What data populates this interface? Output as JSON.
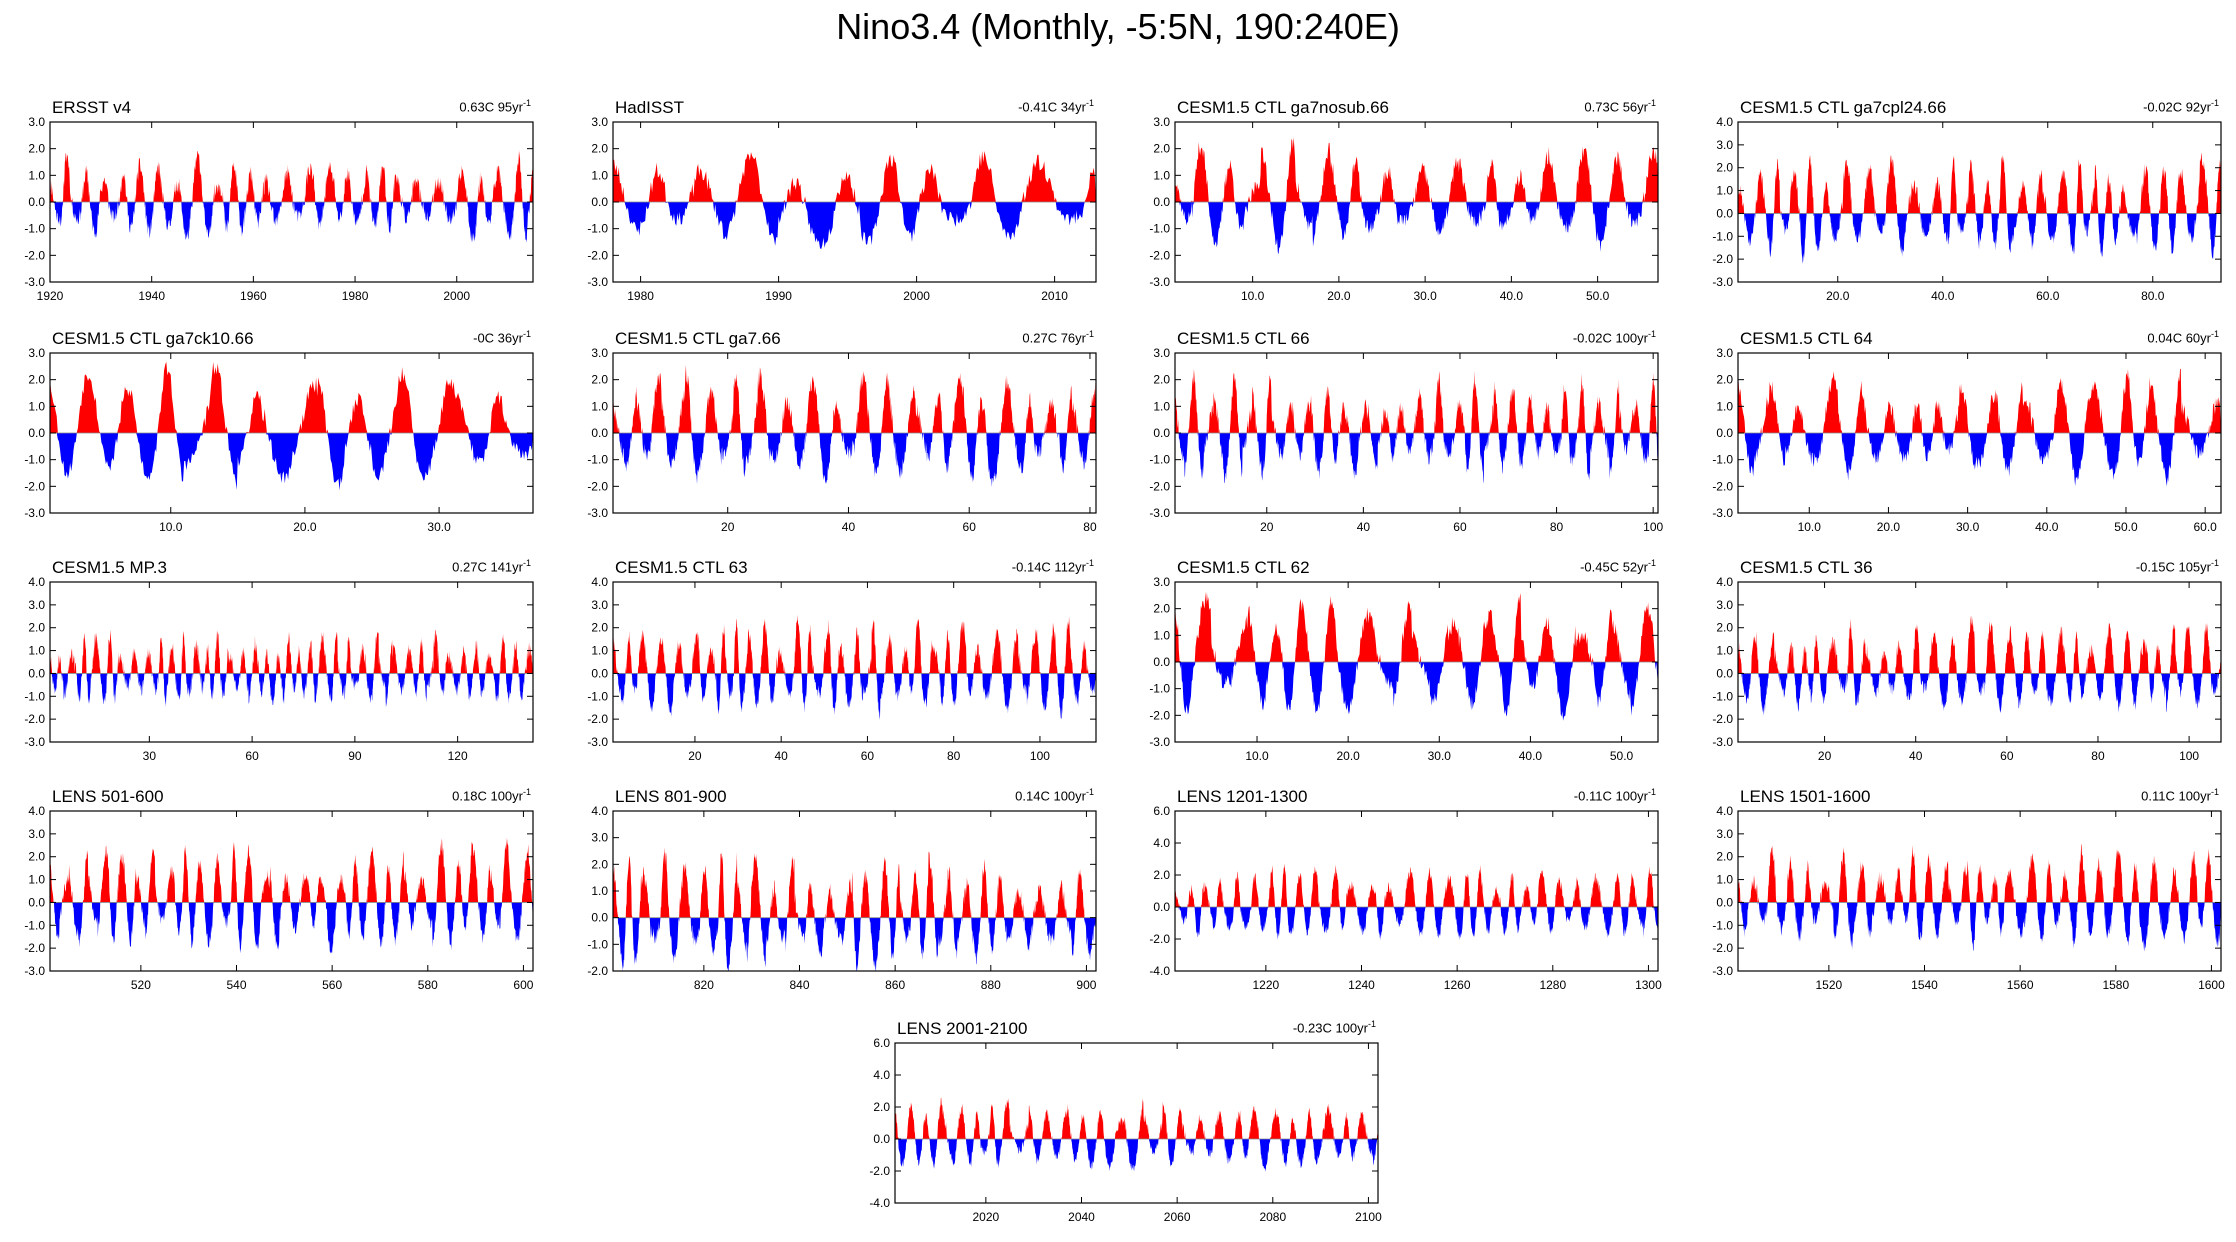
{
  "title": "Nino3.4 (Monthly, -5:5N, 190:240E)",
  "colors": {
    "positive": "#ff0000",
    "negative": "#0000ff",
    "axis": "#000000"
  },
  "chart_data": [
    {
      "type": "area",
      "title": "ERSST v4",
      "trend": "0.63C 95yr",
      "trend_exp": "-1",
      "xlim": [
        1920,
        2015
      ],
      "ylim": [
        -3,
        3
      ],
      "yticks": [
        -3,
        -2,
        -1,
        0,
        1,
        2,
        3
      ],
      "ytick_labels": [
        "-3.0",
        "-2.0",
        "-1.0",
        "0.0",
        "1.0",
        "2.0",
        "3.0"
      ],
      "xticks": [
        1920,
        1940,
        1960,
        1980,
        2000
      ],
      "xtick_labels": [
        "1920",
        "1940",
        "1960",
        "1980",
        "2000"
      ],
      "seed": 11,
      "amp": 0.8
    },
    {
      "type": "area",
      "title": "HadISST",
      "trend": "-0.41C 34yr",
      "trend_exp": "-1",
      "xlim": [
        1978,
        2013
      ],
      "ylim": [
        -3,
        3
      ],
      "yticks": [
        -3,
        -2,
        -1,
        0,
        1,
        2,
        3
      ],
      "ytick_labels": [
        "-3.0",
        "-2.0",
        "-1.0",
        "0.0",
        "1.0",
        "2.0",
        "3.0"
      ],
      "xticks": [
        1980,
        1990,
        2000,
        2010
      ],
      "xtick_labels": [
        "1980",
        "1990",
        "2000",
        "2010"
      ],
      "seed": 23,
      "amp": 0.9
    },
    {
      "type": "area",
      "title": "CESM1.5 CTL ga7nosub.66",
      "trend": "0.73C 56yr",
      "trend_exp": "-1",
      "xlim": [
        1,
        57
      ],
      "ylim": [
        -3,
        3
      ],
      "yticks": [
        -3,
        -2,
        -1,
        0,
        1,
        2,
        3
      ],
      "ytick_labels": [
        "-3.0",
        "-2.0",
        "-1.0",
        "0.0",
        "1.0",
        "2.0",
        "3.0"
      ],
      "xticks": [
        10,
        20,
        30,
        40,
        50
      ],
      "xtick_labels": [
        "10.0",
        "20.0",
        "30.0",
        "40.0",
        "50.0"
      ],
      "seed": 37,
      "amp": 0.95
    },
    {
      "type": "area",
      "title": "CESM1.5 CTL ga7cpl24.66",
      "trend": "-0.02C 92yr",
      "trend_exp": "-1",
      "xlim": [
        1,
        93
      ],
      "ylim": [
        -3,
        4
      ],
      "yticks": [
        -3,
        -2,
        -1,
        0,
        1,
        2,
        3,
        4
      ],
      "ytick_labels": [
        "-3.0",
        "-2.0",
        "-1.0",
        "0.0",
        "1.0",
        "2.0",
        "3.0",
        "4.0"
      ],
      "xticks": [
        20,
        40,
        60,
        80
      ],
      "xtick_labels": [
        "20.0",
        "40.0",
        "60.0",
        "80.0"
      ],
      "seed": 41,
      "amp": 1.1
    },
    {
      "type": "area",
      "title": "CESM1.5 CTL ga7ck10.66",
      "trend": "-0C 36yr",
      "trend_exp": "-1",
      "xlim": [
        1,
        37
      ],
      "ylim": [
        -3,
        3
      ],
      "yticks": [
        -3,
        -2,
        -1,
        0,
        1,
        2,
        3
      ],
      "ytick_labels": [
        "-3.0",
        "-2.0",
        "-1.0",
        "0.0",
        "1.0",
        "2.0",
        "3.0"
      ],
      "xticks": [
        10,
        20,
        30
      ],
      "xtick_labels": [
        "10.0",
        "20.0",
        "30.0"
      ],
      "seed": 53,
      "amp": 1.1
    },
    {
      "type": "area",
      "title": "CESM1.5 CTL ga7.66",
      "trend": "0.27C 76yr",
      "trend_exp": "-1",
      "xlim": [
        1,
        81
      ],
      "ylim": [
        -3,
        3
      ],
      "yticks": [
        -3,
        -2,
        -1,
        0,
        1,
        2,
        3
      ],
      "ytick_labels": [
        "-3.0",
        "-2.0",
        "-1.0",
        "0.0",
        "1.0",
        "2.0",
        "3.0"
      ],
      "xticks": [
        20,
        40,
        60,
        80
      ],
      "xtick_labels": [
        "20",
        "40",
        "60",
        "80"
      ],
      "seed": 67,
      "amp": 1.05
    },
    {
      "type": "area",
      "title": "CESM1.5 CTL 66",
      "trend": "-0.02C 100yr",
      "trend_exp": "-1",
      "xlim": [
        1,
        101
      ],
      "ylim": [
        -3,
        3
      ],
      "yticks": [
        -3,
        -2,
        -1,
        0,
        1,
        2,
        3
      ],
      "ytick_labels": [
        "-3.0",
        "-2.0",
        "-1.0",
        "0.0",
        "1.0",
        "2.0",
        "3.0"
      ],
      "xticks": [
        20,
        40,
        60,
        80,
        100
      ],
      "xtick_labels": [
        "20",
        "40",
        "60",
        "80",
        "100"
      ],
      "seed": 71,
      "amp": 0.95
    },
    {
      "type": "area",
      "title": "CESM1.5 CTL 64",
      "trend": "0.04C 60yr",
      "trend_exp": "-1",
      "xlim": [
        1,
        62
      ],
      "ylim": [
        -3,
        3
      ],
      "yticks": [
        -3,
        -2,
        -1,
        0,
        1,
        2,
        3
      ],
      "ytick_labels": [
        "-3.0",
        "-2.0",
        "-1.0",
        "0.0",
        "1.0",
        "2.0",
        "3.0"
      ],
      "xticks": [
        10,
        20,
        30,
        40,
        50,
        60
      ],
      "xtick_labels": [
        "10.0",
        "20.0",
        "30.0",
        "40.0",
        "50.0",
        "60.0"
      ],
      "seed": 83,
      "amp": 1.0
    },
    {
      "type": "area",
      "title": "CESM1.5 MP.3",
      "trend": "0.27C 141yr",
      "trend_exp": "-1",
      "xlim": [
        1,
        142
      ],
      "ylim": [
        -3,
        4
      ],
      "yticks": [
        -3,
        -2,
        -1,
        0,
        1,
        2,
        3,
        4
      ],
      "ytick_labels": [
        "-3.0",
        "-2.0",
        "-1.0",
        "0.0",
        "1.0",
        "2.0",
        "3.0",
        "4.0"
      ],
      "xticks": [
        30,
        60,
        90,
        120
      ],
      "xtick_labels": [
        "30",
        "60",
        "90",
        "120"
      ],
      "seed": 97,
      "amp": 0.75
    },
    {
      "type": "area",
      "title": "CESM1.5 CTL 63",
      "trend": "-0.14C 112yr",
      "trend_exp": "-1",
      "xlim": [
        1,
        113
      ],
      "ylim": [
        -3,
        4
      ],
      "yticks": [
        -3,
        -2,
        -1,
        0,
        1,
        2,
        3,
        4
      ],
      "ytick_labels": [
        "-3.0",
        "-2.0",
        "-1.0",
        "0.0",
        "1.0",
        "2.0",
        "3.0",
        "4.0"
      ],
      "xticks": [
        20,
        40,
        60,
        80,
        100
      ],
      "xtick_labels": [
        "20",
        "40",
        "60",
        "80",
        "100"
      ],
      "seed": 101,
      "amp": 1.05
    },
    {
      "type": "area",
      "title": "CESM1.5 CTL 62",
      "trend": "-0.45C 52yr",
      "trend_exp": "-1",
      "xlim": [
        1,
        54
      ],
      "ylim": [
        -3,
        3
      ],
      "yticks": [
        -3,
        -2,
        -1,
        0,
        1,
        2,
        3
      ],
      "ytick_labels": [
        "-3.0",
        "-2.0",
        "-1.0",
        "0.0",
        "1.0",
        "2.0",
        "3.0"
      ],
      "xticks": [
        10,
        20,
        30,
        40,
        50
      ],
      "xtick_labels": [
        "10.0",
        "20.0",
        "30.0",
        "40.0",
        "50.0"
      ],
      "seed": 113,
      "amp": 1.1
    },
    {
      "type": "area",
      "title": "CESM1.5 CTL 36",
      "trend": "-0.15C 105yr",
      "trend_exp": "-1",
      "xlim": [
        1,
        107
      ],
      "ylim": [
        -3,
        4
      ],
      "yticks": [
        -3,
        -2,
        -1,
        0,
        1,
        2,
        3,
        4
      ],
      "ytick_labels": [
        "-3.0",
        "-2.0",
        "-1.0",
        "0.0",
        "1.0",
        "2.0",
        "3.0",
        "4.0"
      ],
      "xticks": [
        20,
        40,
        60,
        80,
        100
      ],
      "xtick_labels": [
        "20",
        "40",
        "60",
        "80",
        "100"
      ],
      "seed": 127,
      "amp": 1.0
    },
    {
      "type": "area",
      "title": "LENS 501-600",
      "trend": "0.18C 100yr",
      "trend_exp": "-1",
      "xlim": [
        501,
        602
      ],
      "ylim": [
        -3,
        4
      ],
      "yticks": [
        -3,
        -2,
        -1,
        0,
        1,
        2,
        3,
        4
      ],
      "ytick_labels": [
        "-3.0",
        "-2.0",
        "-1.0",
        "0.0",
        "1.0",
        "2.0",
        "3.0",
        "4.0"
      ],
      "xticks": [
        520,
        540,
        560,
        580,
        600
      ],
      "xtick_labels": [
        "520",
        "540",
        "560",
        "580",
        "600"
      ],
      "seed": 131,
      "amp": 1.15
    },
    {
      "type": "area",
      "title": "LENS 801-900",
      "trend": "0.14C 100yr",
      "trend_exp": "-1",
      "xlim": [
        801,
        902
      ],
      "ylim": [
        -2,
        4
      ],
      "yticks": [
        -2,
        -1,
        0,
        1,
        2,
        3,
        4
      ],
      "ytick_labels": [
        "-2.0",
        "-1.0",
        "0.0",
        "1.0",
        "2.0",
        "3.0",
        "4.0"
      ],
      "xticks": [
        820,
        840,
        860,
        880,
        900
      ],
      "xtick_labels": [
        "820",
        "840",
        "860",
        "880",
        "900"
      ],
      "seed": 139,
      "amp": 1.05
    },
    {
      "type": "area",
      "title": "LENS 1201-1300",
      "trend": "-0.11C 100yr",
      "trend_exp": "-1",
      "xlim": [
        1201,
        1302
      ],
      "ylim": [
        -4,
        6
      ],
      "yticks": [
        -4,
        -2,
        0,
        2,
        4,
        6
      ],
      "ytick_labels": [
        "-4.0",
        "-2.0",
        "0.0",
        "2.0",
        "4.0",
        "6.0"
      ],
      "xticks": [
        1220,
        1240,
        1260,
        1280,
        1300
      ],
      "xtick_labels": [
        "1220",
        "1240",
        "1260",
        "1280",
        "1300"
      ],
      "seed": 149,
      "amp": 1.1
    },
    {
      "type": "area",
      "title": "LENS 1501-1600",
      "trend": "0.11C 100yr",
      "trend_exp": "-1",
      "xlim": [
        1501,
        1602
      ],
      "ylim": [
        -3,
        4
      ],
      "yticks": [
        -3,
        -2,
        -1,
        0,
        1,
        2,
        3,
        4
      ],
      "ytick_labels": [
        "-3.0",
        "-2.0",
        "-1.0",
        "0.0",
        "1.0",
        "2.0",
        "3.0",
        "4.0"
      ],
      "xticks": [
        1520,
        1540,
        1560,
        1580,
        1600
      ],
      "xtick_labels": [
        "1520",
        "1540",
        "1560",
        "1580",
        "1600"
      ],
      "seed": 157,
      "amp": 1.05
    },
    {
      "type": "area",
      "title": "LENS 2001-2100",
      "trend": "-0.23C 100yr",
      "trend_exp": "-1",
      "xlim": [
        2001,
        2102
      ],
      "ylim": [
        -4,
        6
      ],
      "yticks": [
        -4,
        -2,
        0,
        2,
        4,
        6
      ],
      "ytick_labels": [
        "-4.0",
        "-2.0",
        "0.0",
        "2.0",
        "4.0",
        "6.0"
      ],
      "xticks": [
        2020,
        2040,
        2060,
        2080,
        2100
      ],
      "xtick_labels": [
        "2020",
        "2040",
        "2060",
        "2080",
        "2100"
      ],
      "seed": 163,
      "amp": 1.1
    }
  ]
}
